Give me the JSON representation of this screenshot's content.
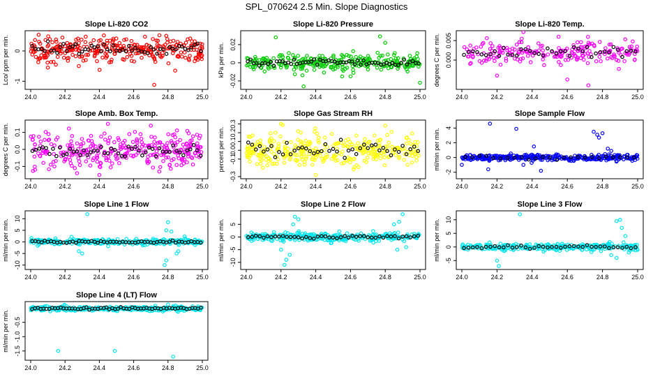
{
  "figure_title": "SPL_070624  2.5 Min. Slope Diagnostics",
  "chart_data": [
    {
      "type": "scatter",
      "title": "Slope Li-820 CO2",
      "ylabel": "Lco/ ppm per min.",
      "color": "#ff0000",
      "xlim": [
        24.0,
        25.0
      ],
      "ylim": [
        -1.2,
        0.6
      ],
      "x_ticks": [
        "24.0",
        "24.2",
        "24.4",
        "24.6",
        "24.8",
        "25.0"
      ],
      "y_ticks": [
        {
          "v": -1,
          "label": "-1"
        },
        {
          "v": 0,
          "label": "0"
        }
      ],
      "base": 0.05,
      "spread": 0.2,
      "points": 320,
      "black_points": 55,
      "outliers": [
        [
          24.72,
          -1.12
        ],
        [
          24.75,
          0.52
        ],
        [
          24.79,
          0.5
        ],
        [
          24.1,
          -0.55
        ]
      ]
    },
    {
      "type": "scatter",
      "title": "Slope Li-820 Pressure",
      "ylabel": "kPa per min.",
      "color": "#00cc00",
      "xlim": [
        24.0,
        25.0
      ],
      "ylim": [
        -0.027,
        0.033
      ],
      "x_ticks": [
        "24.0",
        "24.2",
        "24.4",
        "24.6",
        "24.8",
        "25.0"
      ],
      "y_ticks": [
        {
          "v": -0.02,
          "label": "-0.02"
        },
        {
          "v": 0,
          "label": "0"
        },
        {
          "v": 0.02,
          "label": "0.02"
        }
      ],
      "base": 0.0,
      "spread": 0.005,
      "points": 300,
      "black_points": 60,
      "outliers": [
        [
          24.17,
          0.028
        ],
        [
          24.77,
          0.029
        ],
        [
          24.8,
          0.022
        ],
        [
          24.33,
          -0.026
        ],
        [
          24.6,
          -0.015
        ],
        [
          25.0,
          -0.022
        ]
      ]
    },
    {
      "type": "scatter",
      "title": "Slope Li-820 Temp.",
      "ylabel": "degrees C per min.",
      "color": "#ff00ff",
      "xlim": [
        24.0,
        25.0
      ],
      "ylim": [
        -0.007,
        0.007
      ],
      "x_ticks": [
        "24.0",
        "24.2",
        "24.4",
        "24.6",
        "24.8",
        "25.0"
      ],
      "y_ticks": [
        {
          "v": 0,
          "label": "0.000"
        },
        {
          "v": 0.005,
          "label": "0.005"
        }
      ],
      "base": 0.002,
      "spread": 0.0015,
      "points": 220,
      "black_points": 40,
      "outliers": [
        [
          24.35,
          0.0072
        ],
        [
          24.55,
          0.006
        ],
        [
          24.72,
          -0.0065
        ],
        [
          24.6,
          -0.005
        ],
        [
          24.2,
          -0.004
        ]
      ]
    },
    {
      "type": "scatter",
      "title": "Slope Amb. Box Temp.",
      "ylabel": "degrees C per min.",
      "color": "#ff00ff",
      "xlim": [
        24.0,
        25.0
      ],
      "ylim": [
        -0.16,
        0.16
      ],
      "x_ticks": [
        "24.0",
        "24.2",
        "24.4",
        "24.6",
        "24.8",
        "25.0"
      ],
      "y_ticks": [
        {
          "v": -0.1,
          "label": "-0.1"
        },
        {
          "v": 0,
          "label": "0.0"
        },
        {
          "v": 0.1,
          "label": "0.1"
        }
      ],
      "base": -0.01,
      "spread": 0.05,
      "points": 320,
      "black_points": 50,
      "outliers": [
        [
          24.45,
          0.15
        ],
        [
          24.7,
          0.14
        ],
        [
          24.4,
          -0.15
        ],
        [
          24.27,
          -0.14
        ]
      ]
    },
    {
      "type": "scatter",
      "title": "Slope Gas Stream RH",
      "ylabel": "percent per min.",
      "color": "#ffff00",
      "xlim": [
        24.0,
        25.0
      ],
      "ylim": [
        -0.3,
        0.32
      ],
      "x_ticks": [
        "24.0",
        "24.2",
        "24.4",
        "24.6",
        "24.8",
        "25.0"
      ],
      "y_ticks": [
        {
          "v": -0.3,
          "label": "-0.3"
        },
        {
          "v": -0.1,
          "label": "-0.1"
        },
        {
          "v": 0,
          "label": "0.0"
        },
        {
          "v": 0.1,
          "label": "0.1"
        },
        {
          "v": 0.2,
          "label": "0.2"
        },
        {
          "v": 0.3,
          "label": "0.3"
        }
      ],
      "base": 0.0,
      "spread": 0.09,
      "points": 340,
      "black_points": 45,
      "outliers": [
        [
          24.2,
          0.3
        ],
        [
          24.4,
          -0.28
        ],
        [
          24.8,
          0.28
        ]
      ]
    },
    {
      "type": "scatter",
      "title": "Slope Sample Flow",
      "ylabel": "ml/min per min.",
      "color": "#0000ff",
      "xlim": [
        24.0,
        25.0
      ],
      "ylim": [
        -2.6,
        4.8
      ],
      "x_ticks": [
        "24.0",
        "24.2",
        "24.4",
        "24.6",
        "24.8",
        "25.0"
      ],
      "y_ticks": [
        {
          "v": -2,
          "label": "-2"
        },
        {
          "v": 0,
          "label": "0"
        },
        {
          "v": 2,
          "label": "2"
        },
        {
          "v": 4,
          "label": "4"
        }
      ],
      "base": 0.0,
      "spread": 0.2,
      "points": 340,
      "black_points": 25,
      "outliers": [
        [
          24.16,
          4.6
        ],
        [
          24.31,
          3.9
        ],
        [
          24.75,
          3.5
        ],
        [
          24.77,
          3.1
        ],
        [
          24.8,
          3.3
        ],
        [
          24.78,
          2.7
        ],
        [
          24.83,
          1.2
        ],
        [
          24.85,
          0.9
        ],
        [
          24.41,
          1.5
        ],
        [
          24.0,
          -1.0
        ],
        [
          24.15,
          -1.6
        ],
        [
          24.35,
          -1.0
        ],
        [
          24.45,
          -1.8
        ]
      ]
    },
    {
      "type": "scatter",
      "title": "Slope Line 1 Flow",
      "ylabel": "ml/min per min.",
      "color": "#00e5ee",
      "xlim": [
        24.0,
        25.0
      ],
      "ylim": [
        -11,
        12.5
      ],
      "x_ticks": [
        "24.0",
        "24.2",
        "24.4",
        "24.6",
        "24.8",
        "25.0"
      ],
      "y_ticks": [
        {
          "v": -10,
          "label": "-10"
        },
        {
          "v": -5,
          "label": "-5"
        },
        {
          "v": 0,
          "label": "0"
        },
        {
          "v": 5,
          "label": "5"
        },
        {
          "v": 10,
          "label": "10"
        }
      ],
      "base": 0.0,
      "spread": 0.6,
      "points": 300,
      "black_points": 55,
      "outliers": [
        [
          24.33,
          12
        ],
        [
          24.3,
          -5
        ],
        [
          24.28,
          -4
        ],
        [
          24.79,
          5
        ],
        [
          24.8,
          8.5
        ],
        [
          24.82,
          4.5
        ],
        [
          24.78,
          -10
        ],
        [
          24.79,
          -8
        ],
        [
          24.85,
          -5
        ],
        [
          24.86,
          -4
        ]
      ]
    },
    {
      "type": "scatter",
      "title": "Slope Line 2 Flow",
      "ylabel": "ml/min per min.",
      "color": "#00e5ee",
      "xlim": [
        24.0,
        25.0
      ],
      "ylim": [
        -12,
        9.5
      ],
      "x_ticks": [
        "24.0",
        "24.2",
        "24.4",
        "24.6",
        "24.8",
        "25.0"
      ],
      "y_ticks": [
        {
          "v": -10,
          "label": "-10"
        },
        {
          "v": -5,
          "label": "-5"
        },
        {
          "v": 0,
          "label": "0"
        },
        {
          "v": 5,
          "label": "5"
        }
      ],
      "base": 0.0,
      "spread": 0.8,
      "points": 320,
      "black_points": 45,
      "outliers": [
        [
          24.22,
          -11
        ],
        [
          24.23,
          -9
        ],
        [
          24.25,
          -7
        ],
        [
          24.28,
          8
        ],
        [
          24.3,
          7
        ],
        [
          24.27,
          5
        ],
        [
          24.2,
          -5
        ],
        [
          24.9,
          9
        ],
        [
          24.88,
          6
        ],
        [
          24.85,
          5
        ],
        [
          24.87,
          -5
        ],
        [
          24.92,
          -4
        ]
      ]
    },
    {
      "type": "scatter",
      "title": "Slope Line 3 Flow",
      "ylabel": "ml/min per min.",
      "color": "#00e5ee",
      "xlim": [
        24.0,
        25.0
      ],
      "ylim": [
        -7.5,
        12.5
      ],
      "x_ticks": [
        "24.0",
        "24.2",
        "24.4",
        "24.6",
        "24.8",
        "25.0"
      ],
      "y_ticks": [
        {
          "v": -5,
          "label": "-5"
        },
        {
          "v": 0,
          "label": "0"
        },
        {
          "v": 5,
          "label": "5"
        },
        {
          "v": 10,
          "label": "10"
        }
      ],
      "base": 0.0,
      "spread": 0.6,
      "points": 320,
      "black_points": 40,
      "outliers": [
        [
          24.21,
          -7
        ],
        [
          24.2,
          -5
        ],
        [
          24.33,
          12
        ],
        [
          24.9,
          10
        ],
        [
          24.88,
          9.5
        ],
        [
          24.91,
          7
        ],
        [
          24.93,
          4
        ],
        [
          24.88,
          -4
        ],
        [
          24.85,
          -3
        ],
        [
          24.95,
          -2
        ]
      ]
    },
    {
      "type": "scatter",
      "title": "Slope Line 4 (LT) Flow",
      "ylabel": "ml/min per min.",
      "color": "#00e5ee",
      "xlim": [
        24.0,
        25.0
      ],
      "ylim": [
        -1.75,
        0.15
      ],
      "x_ticks": [
        "24.0",
        "24.2",
        "24.4",
        "24.6",
        "24.8",
        "25.0"
      ],
      "y_ticks": [
        {
          "v": -1.5,
          "label": "-1.5"
        },
        {
          "v": -1.0,
          "label": "-1.0"
        },
        {
          "v": -0.5,
          "label": "-0.5"
        }
      ],
      "base": -0.02,
      "spread": 0.04,
      "points": 320,
      "black_points": 60,
      "outliers": [
        [
          24.16,
          -1.5
        ],
        [
          24.49,
          -1.5
        ],
        [
          24.83,
          -1.7
        ],
        [
          24.8,
          0.12
        ]
      ]
    }
  ]
}
